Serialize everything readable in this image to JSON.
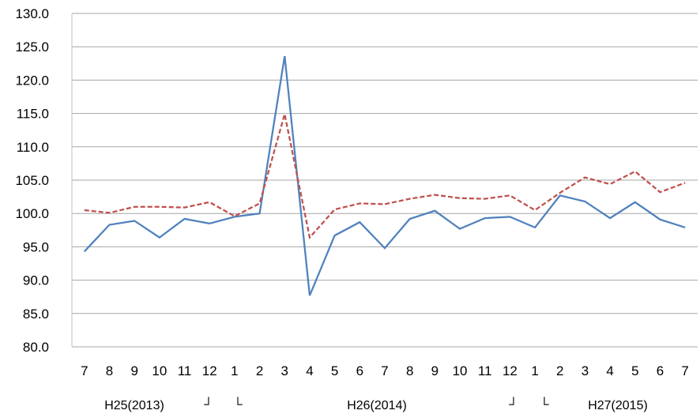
{
  "chart_data": {
    "type": "line",
    "ylim": [
      80,
      130
    ],
    "y_ticks": [
      "80.0",
      "85.0",
      "90.0",
      "95.0",
      "100.0",
      "105.0",
      "110.0",
      "115.0",
      "120.0",
      "125.0",
      "130.0"
    ],
    "categories": [
      "7",
      "8",
      "9",
      "10",
      "11",
      "12",
      "1",
      "2",
      "3",
      "4",
      "5",
      "6",
      "7",
      "8",
      "9",
      "10",
      "11",
      "12",
      "1",
      "2",
      "3",
      "4",
      "5",
      "6",
      "7"
    ],
    "era_labels": [
      "H25(2013)",
      "┘",
      "└",
      "H26(2014)",
      "┘",
      "└",
      "H27(2015)"
    ],
    "grid": true,
    "series": [
      {
        "color": "#4F81BD",
        "style": "solid",
        "values": [
          94.3,
          98.3,
          98.9,
          96.4,
          99.2,
          98.5,
          99.5,
          100.0,
          123.6,
          87.7,
          96.7,
          98.7,
          94.8,
          99.2,
          100.4,
          97.7,
          99.3,
          99.5,
          97.9,
          102.7,
          101.8,
          99.3,
          101.7,
          99.1,
          97.9
        ]
      },
      {
        "color": "#C0504D",
        "style": "dashed",
        "values": [
          100.5,
          100.1,
          101.0,
          101.0,
          100.9,
          101.7,
          99.6,
          101.5,
          114.9,
          96.4,
          100.6,
          101.5,
          101.4,
          102.2,
          102.8,
          102.3,
          102.2,
          102.7,
          100.5,
          103.1,
          105.4,
          104.4,
          106.3,
          103.2,
          104.6
        ]
      }
    ]
  }
}
